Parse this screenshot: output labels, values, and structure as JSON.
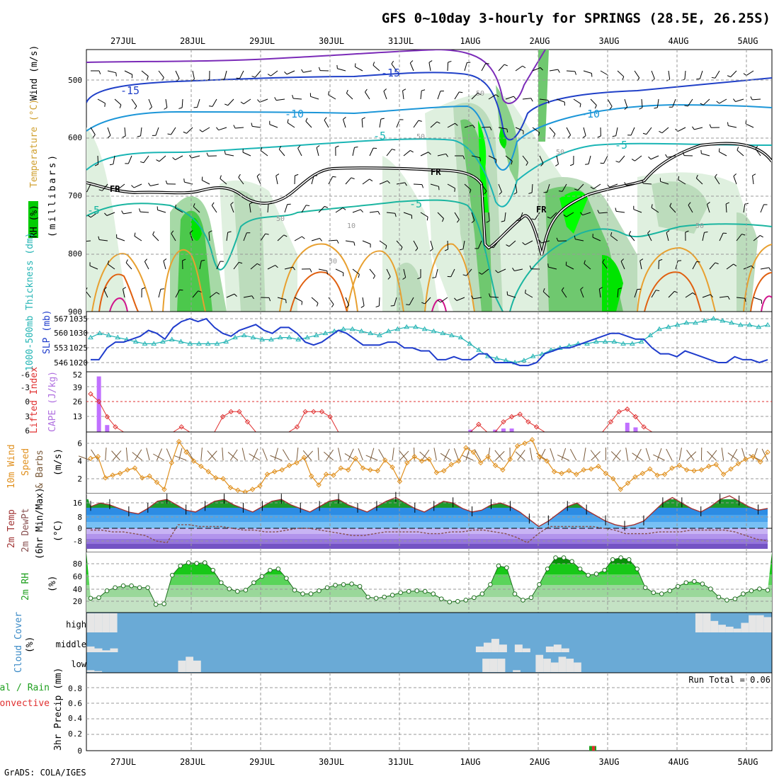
{
  "title": "GFS 0~10day 3-hourly for SPRINGS (28.5E, 26.25S)",
  "footer": "GrADS: COLA/IGES",
  "date_labels": [
    "27JUL",
    "28JUL",
    "29JUL",
    "30JUL",
    "31JUL",
    "1AUG",
    "2AUG",
    "3AUG",
    "4AUG",
    "5AUG"
  ],
  "panels": {
    "upper": {
      "label_rh": "RH (%)",
      "label_temp": "Temperature (°C)",
      "label_wind": "Wind (m/s)",
      "label_mb": "(millibars)",
      "yticks": [
        "500",
        "600",
        "700",
        "800",
        "900"
      ],
      "contour_labels": [
        "-15",
        "-15",
        "-10",
        "-10",
        "-5",
        "-5",
        "-5",
        "-5",
        "FR",
        "FR",
        "FR",
        "50",
        "50",
        "50",
        "50",
        "50",
        "30",
        "10"
      ]
    },
    "thick": {
      "label_thick": "1000-500mb Thickness (dm)",
      "label_slp": "SLP (mb)",
      "yticks_left": [
        "567",
        "560",
        "553",
        "546"
      ],
      "yticks_right": [
        "1035",
        "1030",
        "1025",
        "1020"
      ]
    },
    "cape": {
      "label_li": "Lifted Index",
      "label_cape": "CAPE (J/kg)",
      "yticks_left": [
        "-6",
        "-3",
        "0",
        "3",
        "6"
      ],
      "yticks_right": [
        "52",
        "39",
        "26",
        "13"
      ]
    },
    "wind": {
      "label_a": "10m Wind",
      "label_b": "Speed",
      "label_c": "& Barbs",
      "label_d": "(m/s)",
      "yticks": [
        "6",
        "4",
        "2"
      ]
    },
    "temp": {
      "label_a": "2m Temp",
      "label_b": "2m DewPt",
      "label_c": "(6hr Min/Max)",
      "label_d": "(°C)",
      "yticks": [
        "16",
        "8",
        "0",
        "-8"
      ]
    },
    "rh": {
      "label_a": "2m RH",
      "label_b": "(%)",
      "yticks": [
        "80",
        "60",
        "40",
        "20"
      ]
    },
    "cloud": {
      "label_a": "Cloud Cover",
      "label_b": "(%)",
      "levels": [
        "high",
        "middle",
        "low"
      ]
    },
    "precip": {
      "label_a": "Total / Rain",
      "label_b": "Convective",
      "label_c": "3hr Precip (mm)",
      "run_total": "Run Total = 0.06",
      "yticks": [
        "0.8",
        "0.6",
        "0.4",
        "0.2",
        "0"
      ]
    }
  },
  "colors": {
    "grid": "#888888",
    "cloud_bg": "#6aaad6",
    "cloud_bar": "#e6e6e6",
    "rh_green": "#1ec81e",
    "slp": "#1f3ccc",
    "thickness": "#23b4b4",
    "cape_bar": "#c070ff",
    "li": "#e03030",
    "wind_speed": "#e0901e",
    "temp_line": "#a03232",
    "dewpoint": "#885050"
  },
  "chart_data": [
    {
      "type": "line",
      "title": "SLP (mb)",
      "x_unit": "hours since 26JUL 12Z (3-hourly)",
      "series": [
        {
          "name": "SLP (mb)",
          "values": [
            1021,
            1021,
            1025,
            1027,
            1027,
            1028,
            1029,
            1031,
            1030,
            1028,
            1032,
            1034,
            1035,
            1034,
            1035,
            1032,
            1030,
            1029,
            1031,
            1032,
            1033,
            1031,
            1030,
            1032,
            1032,
            1030,
            1027,
            1026,
            1027,
            1029,
            1031,
            1030,
            1028,
            1026,
            1026,
            1026,
            1027,
            1027,
            1025,
            1025,
            1024,
            1024,
            1021,
            1021,
            1022,
            1021,
            1021,
            1023,
            1023,
            1020,
            1020,
            1020,
            1019,
            1019,
            1020,
            1023,
            1024,
            1025,
            1025,
            1026,
            1027,
            1028,
            1029,
            1030,
            1030,
            1029,
            1028,
            1028,
            1025,
            1023,
            1023,
            1022,
            1024,
            1023,
            1022,
            1021,
            1020,
            1020,
            1022,
            1021,
            1021,
            1020,
            1021
          ]
        }
      ]
    },
    {
      "type": "line",
      "title": "1000-500mb Thickness (dm)",
      "series": [
        {
          "name": "1000-500mb Thickness (dm)",
          "values": [
            558,
            560,
            559,
            558,
            557,
            556,
            555,
            555,
            556,
            557,
            556,
            555,
            555,
            555,
            555,
            556,
            558,
            559,
            558,
            557,
            557,
            558,
            558,
            557,
            558,
            559,
            560,
            561,
            562,
            562,
            561,
            560,
            559,
            561,
            562,
            563,
            563,
            562,
            561,
            560,
            559,
            558,
            555,
            552,
            549,
            548,
            547,
            546,
            547,
            549,
            550,
            552,
            553,
            554,
            555,
            555,
            556,
            556,
            556,
            555,
            555,
            556,
            559,
            562,
            563,
            564,
            565,
            565,
            566,
            567,
            566,
            565,
            564,
            564,
            563,
            564
          ]
        }
      ]
    },
    {
      "type": "bar",
      "title": "CAPE (J/kg)",
      "series": [
        {
          "name": "CAPE (J/kg)",
          "values": [
            0,
            48,
            6,
            0,
            0,
            0,
            0,
            0,
            0,
            0,
            0,
            0,
            0,
            0,
            0,
            0,
            0,
            0,
            0,
            0,
            0,
            0,
            0,
            0,
            0,
            0,
            0,
            0,
            0,
            0,
            0,
            0,
            0,
            0,
            0,
            0,
            0,
            0,
            0,
            0,
            0,
            0,
            0,
            0,
            0,
            0,
            2,
            0,
            0,
            2,
            3,
            3,
            0,
            0,
            0,
            0,
            0,
            0,
            0,
            0,
            0,
            0,
            0,
            0,
            0,
            8,
            4,
            0,
            0,
            0,
            0,
            0,
            0,
            0,
            0,
            0,
            0,
            0,
            0,
            0,
            0,
            0,
            0
          ]
        }
      ]
    },
    {
      "type": "line",
      "title": "Lifted Index",
      "series": [
        {
          "name": "Lifted Index",
          "values": [
            -1.5,
            0,
            3,
            5,
            6,
            6,
            6,
            6,
            6,
            6,
            6,
            5,
            6,
            6,
            6,
            6,
            3,
            2,
            2,
            4,
            6,
            6,
            6,
            6,
            6,
            5,
            2,
            2,
            2,
            3,
            6,
            6,
            6,
            6,
            6,
            6,
            6,
            6,
            6,
            6,
            6,
            6,
            6,
            6,
            6,
            6,
            6,
            4.5,
            6,
            6,
            4,
            3,
            2.5,
            4,
            5,
            6,
            6,
            6,
            6,
            6,
            6,
            6,
            6,
            4,
            2,
            1.5,
            3,
            5,
            6,
            6,
            6,
            6,
            6,
            6,
            6,
            6,
            6,
            6,
            6,
            6,
            6,
            6,
            6
          ]
        }
      ]
    },
    {
      "type": "line",
      "title": "10m Wind Speed (m/s)",
      "series": [
        {
          "name": "Wind Speed (m/s)",
          "values": [
            4.3,
            4.5,
            2.1,
            2.4,
            2.6,
            3.0,
            3.2,
            2.1,
            2.3,
            1.6,
            0.8,
            3.8,
            6.2,
            5.0,
            4.0,
            3.4,
            2.8,
            2.1,
            2.0,
            1.0,
            0.7,
            0.5,
            0.8,
            1.2,
            2.5,
            2.8,
            3.0,
            3.5,
            3.8,
            4.4,
            2.3,
            1.3,
            2.5,
            2.4,
            3.2,
            3.0,
            4.3,
            3.2,
            3.0,
            2.9,
            4.1,
            3.3,
            1.7,
            3.8,
            4.5,
            4.0,
            4.2,
            2.7,
            2.9,
            3.6,
            4.0,
            5.5,
            5.0,
            3.8,
            4.5,
            3.5,
            3.0,
            4.2,
            5.7,
            6.0,
            6.4,
            4.5,
            4.0,
            2.8,
            2.6,
            2.9,
            2.5,
            3.0,
            3.1,
            3.4,
            2.6,
            2.0,
            0.8,
            1.5,
            2.2,
            2.6,
            3.1,
            2.4,
            2.5,
            3.2,
            3.5,
            3.0,
            2.9,
            3.0,
            3.4,
            3.6,
            2.5,
            3.1,
            3.7,
            4.2,
            4.5,
            3.9,
            5.0
          ]
        }
      ]
    },
    {
      "type": "line",
      "title": "2m Temp / 2m DewPt (°C)",
      "series": [
        {
          "name": "2m Temp (°C)",
          "values": [
            12,
            14,
            13,
            11,
            9,
            8,
            11,
            15,
            16,
            13,
            10,
            9,
            12,
            15,
            16,
            13,
            11,
            9,
            12,
            15,
            16,
            13,
            11,
            9,
            12,
            15,
            16,
            13,
            11,
            9,
            12,
            15,
            17,
            14,
            11,
            9,
            12,
            15,
            14,
            11,
            9,
            10,
            13,
            14,
            12,
            9,
            5,
            1,
            4,
            8,
            12,
            14,
            10,
            7,
            4,
            2,
            1,
            2,
            4,
            9,
            14,
            17,
            14,
            11,
            9,
            12,
            16,
            18,
            15,
            12,
            10,
            11
          ]
        },
        {
          "name": "2m DewPt (°C)",
          "values": [
            -1,
            -1,
            -2,
            -2,
            -3,
            -4,
            -7,
            -8,
            2,
            2,
            1,
            1,
            1,
            0,
            -1,
            -1,
            -2,
            -2,
            -1,
            0,
            0,
            -1,
            -2,
            -3,
            -4,
            -4,
            -3,
            -2,
            -2,
            -2,
            -2,
            -3,
            -3,
            -2,
            -2,
            -1,
            -1,
            -2,
            -3,
            -5,
            -8,
            -3,
            1,
            1,
            1,
            1,
            1,
            0,
            -1,
            -3,
            -3,
            -3,
            -2,
            -2,
            -2,
            -1,
            -1,
            -1,
            -1,
            -2,
            -4,
            -6,
            -7
          ]
        }
      ]
    },
    {
      "type": "area",
      "title": "2m RH (%)",
      "series": [
        {
          "name": "2m RH (%)",
          "values": [
            23,
            24,
            35,
            40,
            43,
            43,
            40,
            40,
            13,
            14,
            60,
            75,
            80,
            79,
            80,
            68,
            48,
            38,
            34,
            36,
            48,
            58,
            68,
            70,
            55,
            36,
            30,
            30,
            35,
            40,
            44,
            45,
            46,
            42,
            25,
            23,
            25,
            28,
            32,
            34,
            35,
            34,
            30,
            22,
            17,
            18,
            20,
            24,
            30,
            45,
            75,
            72,
            30,
            20,
            24,
            45,
            70,
            88,
            88,
            82,
            70,
            60,
            62,
            68,
            85,
            88,
            85,
            70,
            40,
            32,
            30,
            35,
            42,
            48,
            50,
            46,
            38,
            25,
            20,
            22,
            30,
            35,
            38,
            36
          ]
        }
      ]
    },
    {
      "type": "bar",
      "title": "Cloud Cover (%)",
      "series": [
        {
          "name": "high",
          "values": [
            100,
            100,
            100,
            100,
            0,
            0,
            0,
            0,
            0,
            0,
            0,
            0,
            0,
            0,
            0,
            0,
            0,
            0,
            0,
            0,
            0,
            0,
            0,
            0,
            0,
            0,
            0,
            0,
            0,
            0,
            0,
            0,
            0,
            0,
            0,
            0,
            0,
            0,
            0,
            0,
            0,
            0,
            0,
            0,
            0,
            0,
            0,
            0,
            0,
            0,
            0,
            0,
            0,
            0,
            0,
            0,
            0,
            0,
            0,
            0,
            0,
            0,
            0,
            0,
            0,
            0,
            0,
            0,
            0,
            0,
            0,
            0,
            0,
            0,
            0,
            0,
            0,
            0,
            0,
            0,
            100,
            100,
            60,
            40,
            30,
            20,
            50,
            90,
            90,
            80
          ]
        },
        {
          "name": "middle",
          "values": [
            30,
            20,
            10,
            20,
            0,
            0,
            0,
            0,
            0,
            0,
            0,
            0,
            0,
            0,
            0,
            0,
            0,
            0,
            0,
            0,
            0,
            0,
            0,
            0,
            0,
            0,
            0,
            0,
            0,
            0,
            0,
            0,
            0,
            0,
            0,
            0,
            0,
            0,
            0,
            0,
            0,
            0,
            0,
            0,
            0,
            0,
            0,
            0,
            0,
            0,
            30,
            50,
            70,
            40,
            0,
            40,
            20,
            0,
            0,
            30,
            40,
            20,
            0,
            0,
            0,
            0,
            0,
            0,
            0,
            0,
            0,
            0,
            0,
            0,
            0,
            0,
            0,
            0,
            0,
            0,
            0,
            0,
            0,
            0,
            0,
            0,
            0,
            0
          ]
        },
        {
          "name": "low",
          "values": [
            10,
            5,
            0,
            0,
            0,
            0,
            0,
            0,
            0,
            0,
            0,
            0,
            60,
            80,
            60,
            0,
            0,
            0,
            0,
            0,
            0,
            0,
            0,
            0,
            0,
            0,
            0,
            0,
            0,
            0,
            0,
            0,
            0,
            0,
            0,
            0,
            0,
            0,
            0,
            0,
            0,
            0,
            0,
            0,
            0,
            0,
            0,
            0,
            0,
            0,
            0,
            0,
            70,
            70,
            70,
            0,
            10,
            0,
            0,
            90,
            70,
            50,
            80,
            70,
            50,
            0,
            0,
            0,
            0,
            0,
            0,
            0,
            0,
            0,
            0,
            0,
            0,
            0,
            0,
            0,
            0,
            0,
            0,
            0,
            0,
            0,
            0,
            0,
            0,
            0
          ]
        }
      ]
    },
    {
      "type": "bar",
      "title": "3hr Precip (mm)",
      "ylim": [
        0,
        1
      ],
      "series": [
        {
          "name": "Total / Rain",
          "values": [
            0.06
          ]
        },
        {
          "name": "Convective",
          "values": [
            0.06
          ]
        }
      ]
    }
  ]
}
